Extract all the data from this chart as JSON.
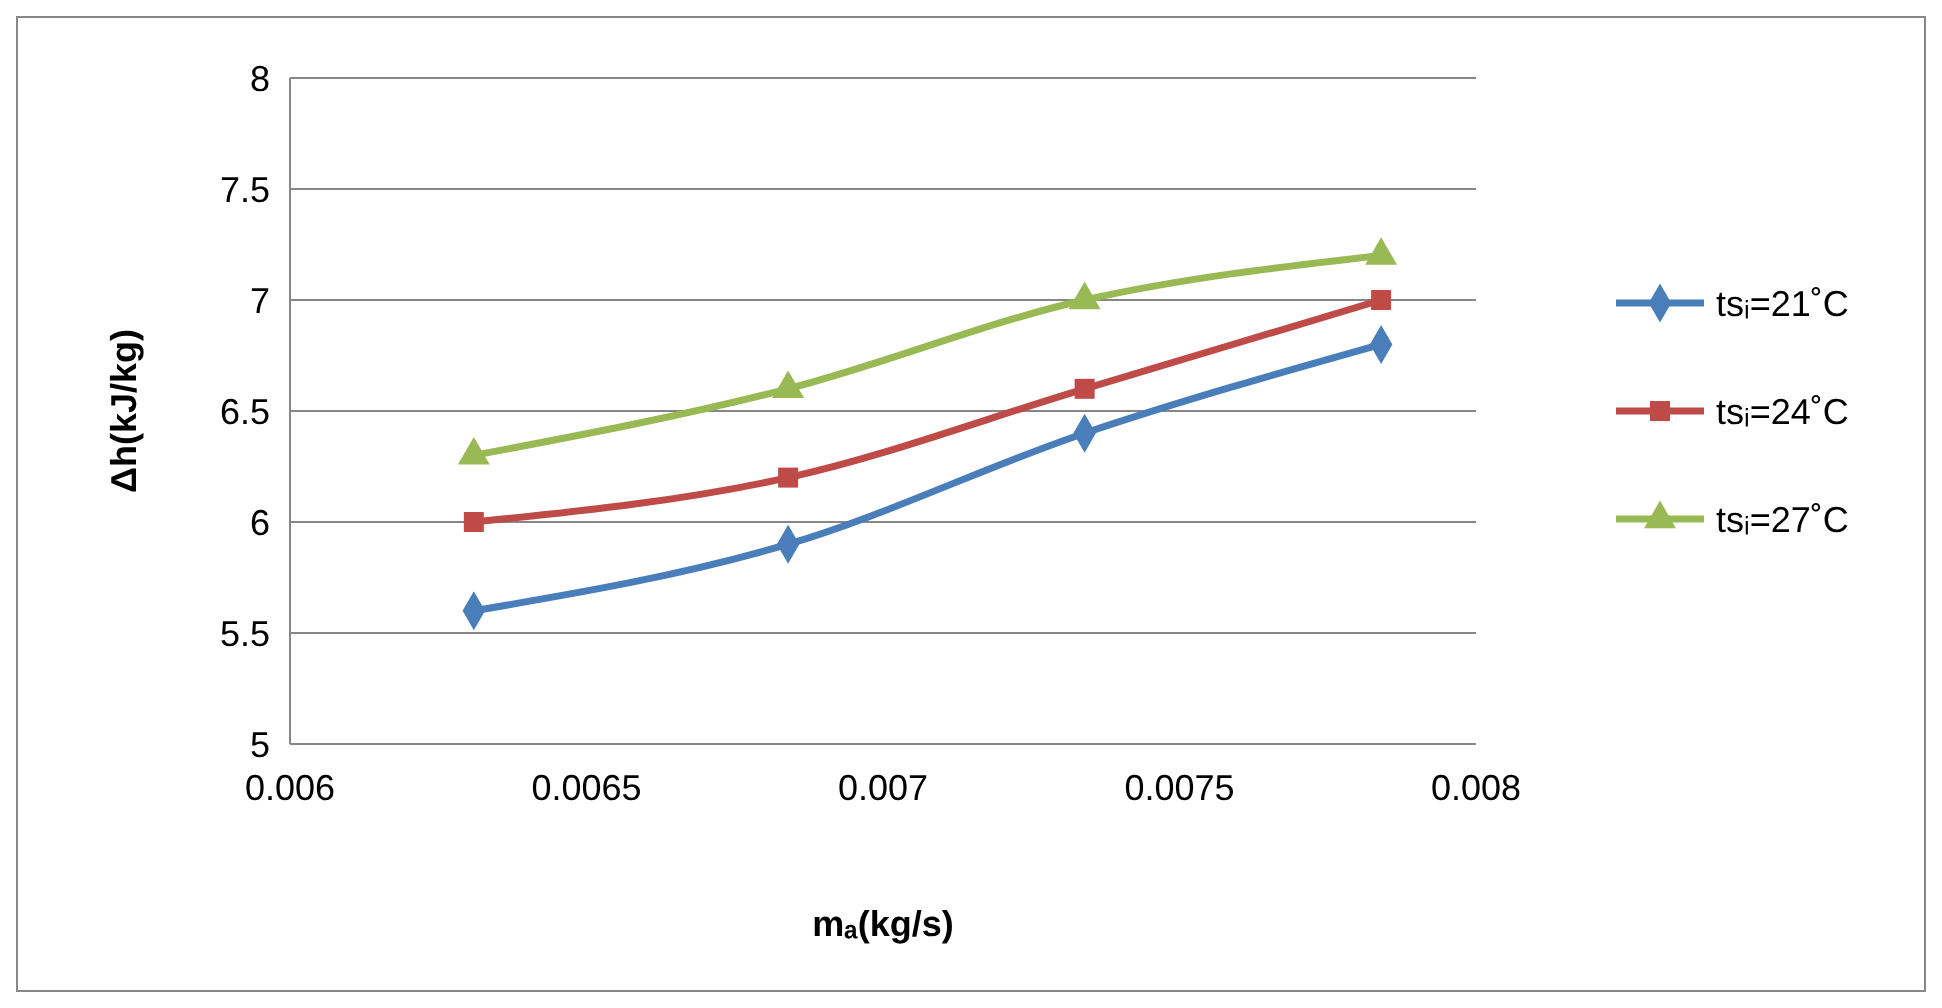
{
  "chart_data": {
    "type": "line",
    "xlabel": "mₐ(kg/s)",
    "ylabel": "Δh(kJ/kg)",
    "x": [
      0.00631,
      0.00684,
      0.00734,
      0.00784
    ],
    "xlim": [
      0.006,
      0.008
    ],
    "xticks": [
      0.006,
      0.0065,
      0.007,
      0.0075,
      0.008
    ],
    "ylim": [
      5,
      8
    ],
    "yticks": [
      5,
      5.5,
      6,
      6.5,
      7,
      7.5,
      8
    ],
    "grid": "y",
    "legend": "right",
    "series": [
      {
        "name": "tsᵢ=21˚C",
        "color": "#4a7ebb",
        "marker": "diamond",
        "values": [
          5.6,
          5.9,
          6.4,
          6.8
        ]
      },
      {
        "name": "tsᵢ=24˚C",
        "color": "#be4b48",
        "marker": "square",
        "values": [
          6,
          6.2,
          6.6,
          7
        ]
      },
      {
        "name": "tsᵢ=27˚C",
        "color": "#98b954",
        "marker": "triangle",
        "values": [
          6.3,
          6.6,
          7,
          7.2
        ]
      }
    ]
  }
}
